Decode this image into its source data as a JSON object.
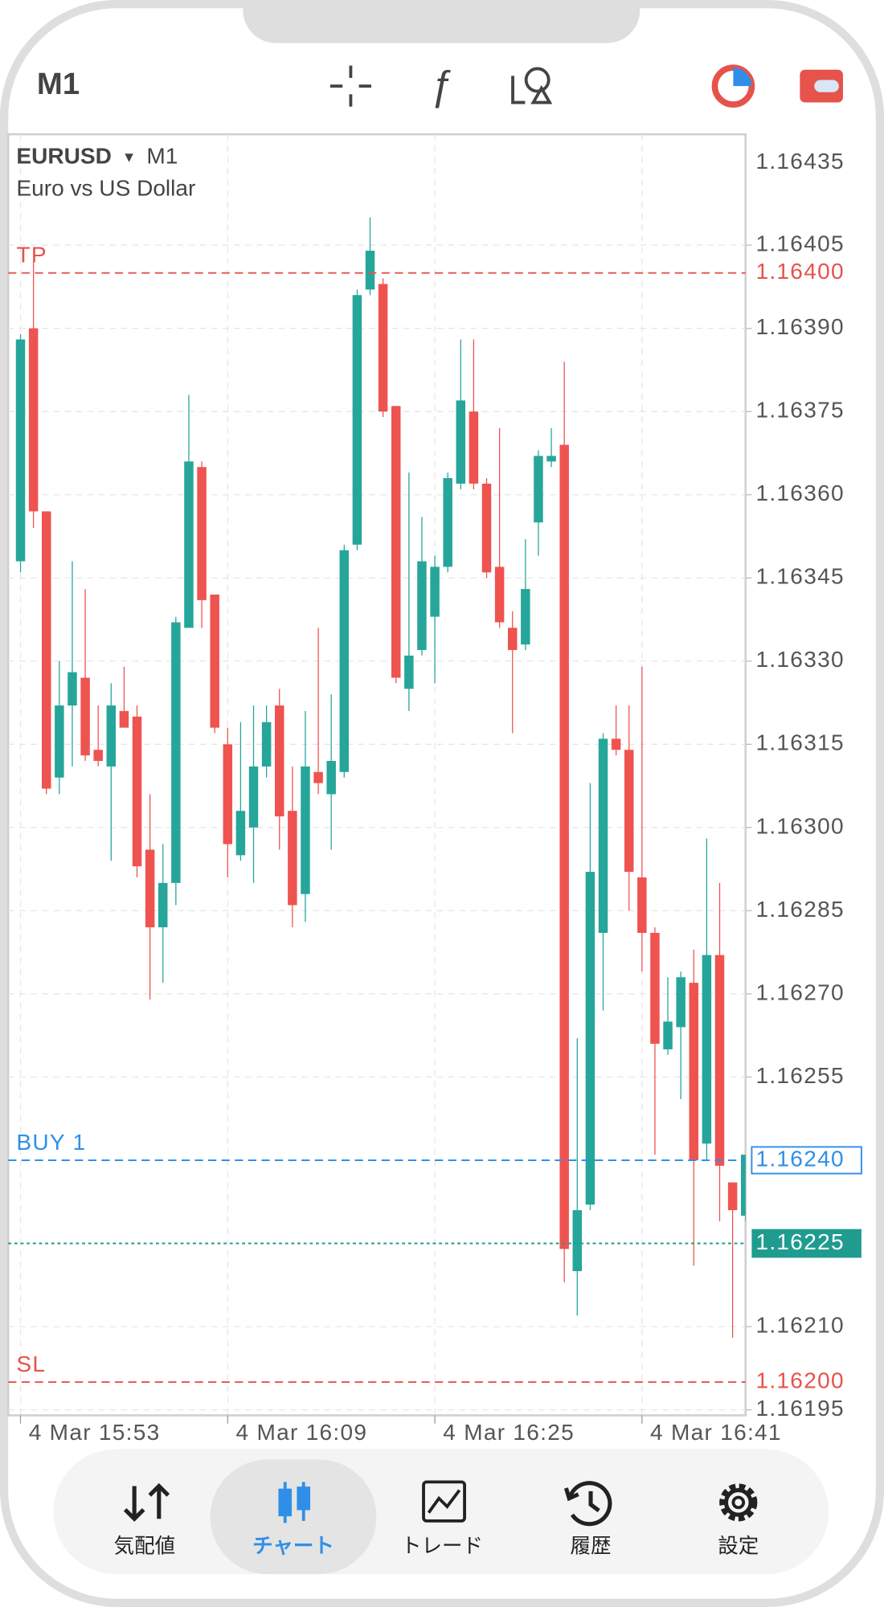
{
  "header": {
    "timeframe": "M1"
  },
  "nav": [
    "気配値",
    "チャート",
    "トレード",
    "履歴",
    "設定"
  ],
  "chart_data": {
    "type": "candlestick",
    "symbol": "EURUSD",
    "timeframe": "M1",
    "description": "Euro vs US Dollar",
    "up_color": "#26a69a",
    "down_color": "#ef5350",
    "grid": true,
    "ylim": [
      1.16194,
      1.16425
    ],
    "top_label": 1.16435,
    "yticks": [
      1.16405,
      {
        "value": 1.1639,
        "label": "1.16390"
      },
      1.16375,
      {
        "value": 1.1636,
        "label": "1.16360"
      },
      1.16345,
      {
        "value": 1.1633,
        "label": "1.16330"
      },
      1.16315,
      {
        "value": 1.163,
        "label": "1.16300"
      },
      1.16285,
      {
        "value": 1.1627,
        "label": "1.16270"
      },
      1.16255,
      {
        "value": 1.1621,
        "label": "1.16210"
      },
      1.16195
    ],
    "xticks": [
      {
        "value": 0,
        "label": "4 Mar 15:53"
      },
      {
        "value": 16,
        "label": "4 Mar 16:09"
      },
      {
        "value": 32,
        "label": "4 Mar 16:25"
      },
      {
        "value": 48,
        "label": "4 Mar 16:41"
      }
    ],
    "levels": [
      {
        "name": "TP",
        "value": 1.164,
        "label": "1.16400",
        "color": "#e5534b",
        "style": "text",
        "dash": "dashed"
      },
      {
        "name": "BUY 1",
        "value": 1.1624,
        "label": "1.16240",
        "color": "#2f8fe8",
        "style": "box",
        "dash": "dashed"
      },
      {
        "value": 1.16225,
        "label": "1.16225",
        "color": "#1f9c8f",
        "style": "filled",
        "dash": "dotted"
      },
      {
        "name": "SL",
        "value": 1.162,
        "label": "1.16200",
        "color": "#e5534b",
        "style": "text",
        "dash": "dashed"
      }
    ],
    "candles": {
      "open": [
        1.16348,
        1.1639,
        1.16357,
        1.16309,
        1.16322,
        1.16327,
        1.16314,
        1.16311,
        1.16321,
        1.1632,
        1.16296,
        1.16282,
        1.1629,
        1.16336,
        1.16365,
        1.16342,
        1.16315,
        1.16295,
        1.163,
        1.16311,
        1.16322,
        1.16303,
        1.16288,
        1.1631,
        1.16306,
        1.1631,
        1.16351,
        1.16397,
        1.16398,
        1.16376,
        1.16325,
        1.16332,
        1.16338,
        1.16347,
        1.16362,
        1.16375,
        1.16362,
        1.16347,
        1.16336,
        1.16333,
        1.16355,
        1.16366,
        1.16369,
        1.1622,
        1.16232,
        1.16281,
        1.16316,
        1.16314,
        1.16291,
        1.16281,
        1.1626,
        1.16264,
        1.16272,
        1.16243,
        1.16277,
        1.16236,
        1.1623
      ],
      "high": [
        1.16389,
        1.16402,
        1.16357,
        1.1633,
        1.16348,
        1.16343,
        1.16322,
        1.16326,
        1.16329,
        1.16322,
        1.16306,
        1.16297,
        1.16338,
        1.16378,
        1.16366,
        1.16342,
        1.16318,
        1.16319,
        1.16322,
        1.16322,
        1.16325,
        1.16311,
        1.16321,
        1.16336,
        1.16324,
        1.16351,
        1.16397,
        1.1641,
        1.16399,
        1.16376,
        1.16364,
        1.16356,
        1.16349,
        1.16364,
        1.16388,
        1.16388,
        1.16363,
        1.16372,
        1.16339,
        1.16352,
        1.16368,
        1.16372,
        1.16384,
        1.16262,
        1.16308,
        1.16317,
        1.16322,
        1.16322,
        1.16329,
        1.16282,
        1.16273,
        1.16274,
        1.16278,
        1.16298,
        1.1629,
        1.16236,
        1.16241
      ],
      "low": [
        1.16346,
        1.16354,
        1.16306,
        1.16306,
        1.16311,
        1.16312,
        1.16311,
        1.16294,
        1.16318,
        1.16291,
        1.16269,
        1.16272,
        1.16286,
        1.16336,
        1.16336,
        1.16317,
        1.16291,
        1.16294,
        1.1629,
        1.16309,
        1.16296,
        1.16282,
        1.16283,
        1.16306,
        1.16296,
        1.16309,
        1.1635,
        1.16396,
        1.16374,
        1.16326,
        1.16321,
        1.16331,
        1.16326,
        1.16346,
        1.16361,
        1.16361,
        1.16345,
        1.16336,
        1.16317,
        1.16332,
        1.16349,
        1.16365,
        1.16218,
        1.16212,
        1.16231,
        1.16267,
        1.16313,
        1.16285,
        1.16274,
        1.16241,
        1.16259,
        1.16251,
        1.16221,
        1.1624,
        1.16229,
        1.16208,
        1.16229
      ],
      "close": [
        1.16388,
        1.16357,
        1.16307,
        1.16322,
        1.16328,
        1.16313,
        1.16312,
        1.16322,
        1.16318,
        1.16293,
        1.16282,
        1.1629,
        1.16337,
        1.16366,
        1.16341,
        1.16318,
        1.16297,
        1.16303,
        1.16311,
        1.16319,
        1.16302,
        1.16286,
        1.16311,
        1.16308,
        1.16312,
        1.1635,
        1.16396,
        1.16404,
        1.16375,
        1.16327,
        1.16331,
        1.16348,
        1.16347,
        1.16363,
        1.16377,
        1.16362,
        1.16346,
        1.16337,
        1.16332,
        1.16343,
        1.16367,
        1.16367,
        1.16224,
        1.16231,
        1.16292,
        1.16316,
        1.16314,
        1.16292,
        1.16281,
        1.16261,
        1.16265,
        1.16273,
        1.1624,
        1.16277,
        1.16239,
        1.16231,
        1.16241
      ]
    }
  }
}
